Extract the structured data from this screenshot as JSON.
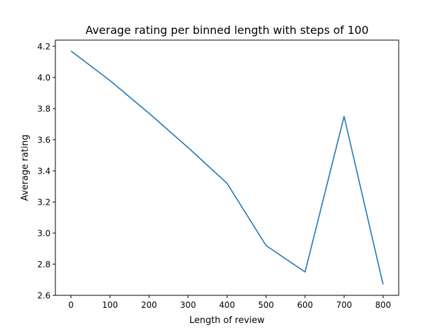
{
  "chart_data": {
    "type": "line",
    "title": "Average rating per binned length with steps of 100",
    "xlabel": "Length of review",
    "ylabel": "Average rating",
    "xlim": [
      -40,
      840
    ],
    "ylim": [
      2.6,
      4.24
    ],
    "xticks": [
      0,
      100,
      200,
      300,
      400,
      500,
      600,
      700,
      800
    ],
    "yticks": [
      2.6,
      2.8,
      3.0,
      3.2,
      3.4,
      3.6,
      3.8,
      4.0,
      4.2
    ],
    "ytick_labels": [
      "2.6",
      "2.8",
      "3.0",
      "3.2",
      "3.4",
      "3.6",
      "3.8",
      "4.0",
      "4.2"
    ],
    "grid": false,
    "series": [
      {
        "color": "#1f77b4",
        "x": [
          0,
          100,
          200,
          300,
          400,
          500,
          600,
          700,
          800
        ],
        "y": [
          4.17,
          3.98,
          3.77,
          3.55,
          3.32,
          2.92,
          2.75,
          3.75,
          2.67
        ]
      }
    ]
  }
}
